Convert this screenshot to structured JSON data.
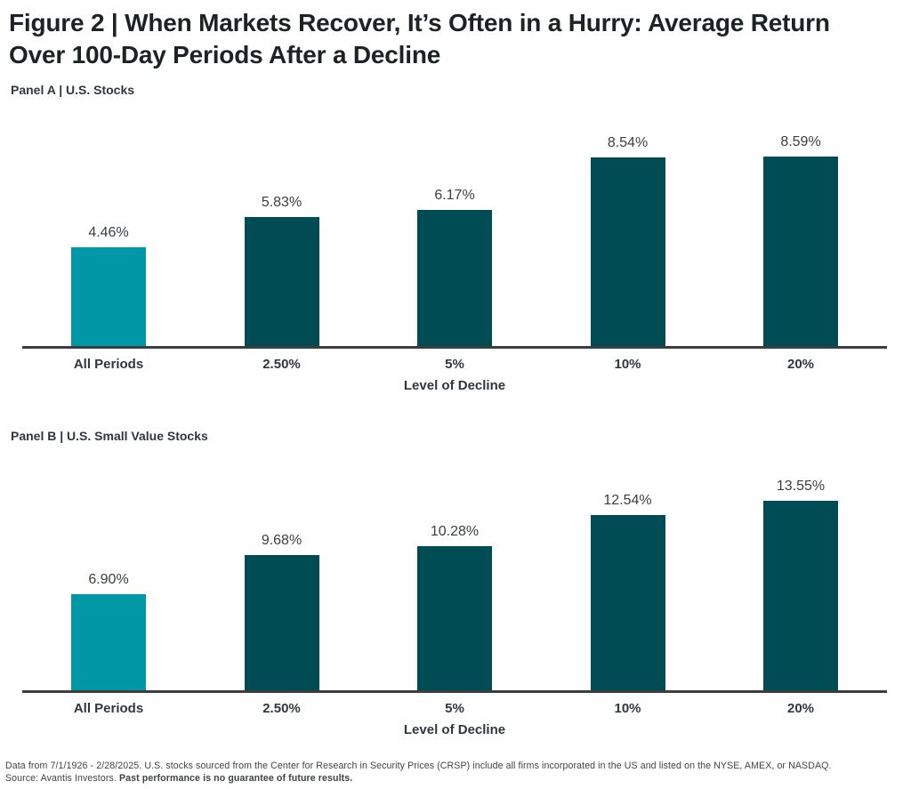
{
  "figure": {
    "title": "Figure 2 | When Markets Recover, It’s Often in a Hurry: Average Return Over 100-Day Periods After a Decline"
  },
  "colors": {
    "highlight": "#0098A6",
    "primary": "#004C55",
    "axis": "#3a3e40"
  },
  "chart_data": [
    {
      "type": "bar",
      "panel_label": "Panel A | U.S. Stocks",
      "categories": [
        "All Periods",
        "2.50%",
        "5%",
        "10%",
        "20%"
      ],
      "values": [
        4.46,
        5.83,
        6.17,
        8.54,
        8.59
      ],
      "value_labels": [
        "4.46%",
        "5.83%",
        "6.17%",
        "8.54%",
        "8.59%"
      ],
      "xlabel": "Level of Decline",
      "ylabel": "",
      "ylim": [
        0,
        9
      ],
      "grid": false,
      "legend": false,
      "highlight_index": 0
    },
    {
      "type": "bar",
      "panel_label": "Panel B | U.S. Small Value Stocks",
      "categories": [
        "All Periods",
        "2.50%",
        "5%",
        "10%",
        "20%"
      ],
      "values": [
        6.9,
        9.68,
        10.28,
        12.54,
        13.55
      ],
      "value_labels": [
        "6.90%",
        "9.68%",
        "10.28%",
        "12.54%",
        "13.55%"
      ],
      "xlabel": "Level of Decline",
      "ylabel": "",
      "ylim": [
        0,
        14
      ],
      "grid": false,
      "legend": false,
      "highlight_index": 0
    }
  ],
  "footnote": {
    "line1": "Data from 7/1/1926 - 2/28/2025. U.S. stocks sourced from the Center for Research in Security Prices (CRSP) include all firms incorporated in the US and listed on the NYSE, AMEX, or NASDAQ.",
    "line2_normal": "Source: Avantis Investors. ",
    "line2_bold": "Past performance is no guarantee of future results."
  }
}
